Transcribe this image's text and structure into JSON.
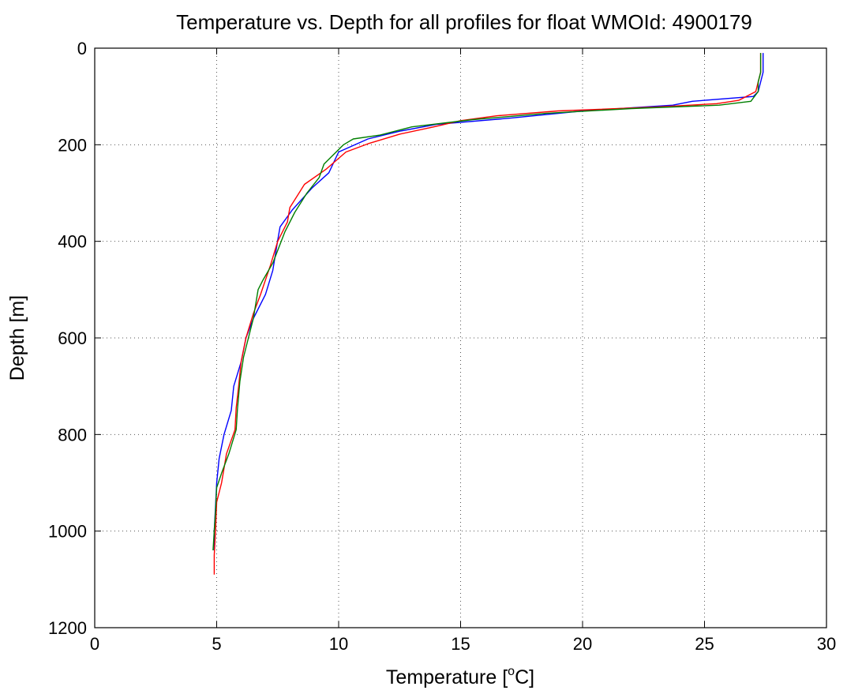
{
  "chart_data": {
    "type": "line",
    "title": "Temperature vs. Depth for all profiles for float WMOId: 4900179",
    "xlabel": "Temperature [",
    "xlabel_sup": "o",
    "xlabel_end": "C]",
    "ylabel": "Depth [m]",
    "xlim": [
      0,
      30
    ],
    "ylim": [
      0,
      1200
    ],
    "y_reversed": true,
    "grid": true,
    "xticks": [
      0,
      5,
      10,
      15,
      20,
      25,
      30
    ],
    "yticks": [
      0,
      200,
      400,
      600,
      800,
      1000,
      1200
    ],
    "xtick_labels": [
      "0",
      "5",
      "10",
      "15",
      "20",
      "25",
      "30"
    ],
    "ytick_labels": [
      "0",
      "200",
      "400",
      "600",
      "800",
      "1000",
      "1200"
    ],
    "series": [
      {
        "color": "#0000ff",
        "points": [
          [
            27.4,
            10
          ],
          [
            27.4,
            30
          ],
          [
            27.4,
            50
          ],
          [
            27.3,
            70
          ],
          [
            27.2,
            90
          ],
          [
            27.0,
            100
          ],
          [
            24.5,
            110
          ],
          [
            23.7,
            118
          ],
          [
            20.0,
            130
          ],
          [
            17.0,
            145
          ],
          [
            14.0,
            158
          ],
          [
            12.5,
            172
          ],
          [
            11.2,
            188
          ],
          [
            10.0,
            215
          ],
          [
            9.6,
            258
          ],
          [
            8.9,
            290
          ],
          [
            8.1,
            335
          ],
          [
            7.6,
            370
          ],
          [
            7.5,
            398
          ],
          [
            7.3,
            460
          ],
          [
            7.0,
            510
          ],
          [
            6.5,
            560
          ],
          [
            6.2,
            600
          ],
          [
            6.0,
            650
          ],
          [
            5.7,
            700
          ],
          [
            5.6,
            750
          ],
          [
            5.3,
            800
          ],
          [
            5.1,
            850
          ],
          [
            5.0,
            900
          ],
          [
            4.95,
            950
          ],
          [
            4.9,
            1000
          ],
          [
            4.9,
            1040
          ]
        ]
      },
      {
        "color": "#ff0000",
        "points": [
          [
            27.3,
            10
          ],
          [
            27.3,
            30
          ],
          [
            27.3,
            50
          ],
          [
            27.2,
            70
          ],
          [
            27.1,
            90
          ],
          [
            26.4,
            108
          ],
          [
            25.5,
            115
          ],
          [
            23.0,
            122
          ],
          [
            19.0,
            130
          ],
          [
            16.5,
            140
          ],
          [
            15.0,
            150
          ],
          [
            13.9,
            163
          ],
          [
            12.5,
            178
          ],
          [
            11.2,
            198
          ],
          [
            10.3,
            215
          ],
          [
            9.5,
            250
          ],
          [
            8.6,
            282
          ],
          [
            8.0,
            330
          ],
          [
            7.9,
            360
          ],
          [
            7.5,
            400
          ],
          [
            7.2,
            450
          ],
          [
            6.8,
            510
          ],
          [
            6.5,
            550
          ],
          [
            6.2,
            600
          ],
          [
            6.0,
            650
          ],
          [
            5.9,
            700
          ],
          [
            5.8,
            745
          ],
          [
            5.75,
            790
          ],
          [
            5.4,
            840
          ],
          [
            5.2,
            900
          ],
          [
            5.0,
            940
          ],
          [
            4.95,
            1000
          ],
          [
            4.9,
            1050
          ],
          [
            4.9,
            1090
          ]
        ]
      },
      {
        "color": "#007f00",
        "points": [
          [
            27.3,
            10
          ],
          [
            27.3,
            30
          ],
          [
            27.3,
            50
          ],
          [
            27.2,
            70
          ],
          [
            27.2,
            90
          ],
          [
            26.9,
            110
          ],
          [
            25.6,
            118
          ],
          [
            22.0,
            125
          ],
          [
            18.5,
            135
          ],
          [
            15.5,
            148
          ],
          [
            13.0,
            163
          ],
          [
            11.7,
            180
          ],
          [
            10.6,
            188
          ],
          [
            10.2,
            200
          ],
          [
            9.4,
            240
          ],
          [
            9.2,
            268
          ],
          [
            8.7,
            300
          ],
          [
            8.2,
            340
          ],
          [
            7.8,
            380
          ],
          [
            7.3,
            445
          ],
          [
            6.9,
            480
          ],
          [
            6.7,
            500
          ],
          [
            6.5,
            560
          ],
          [
            6.3,
            600
          ],
          [
            6.1,
            640
          ],
          [
            5.95,
            690
          ],
          [
            5.85,
            748
          ],
          [
            5.8,
            790
          ],
          [
            5.5,
            840
          ],
          [
            5.2,
            880
          ],
          [
            5.0,
            910
          ],
          [
            4.95,
            960
          ],
          [
            4.9,
            1000
          ],
          [
            4.85,
            1040
          ]
        ]
      }
    ]
  }
}
